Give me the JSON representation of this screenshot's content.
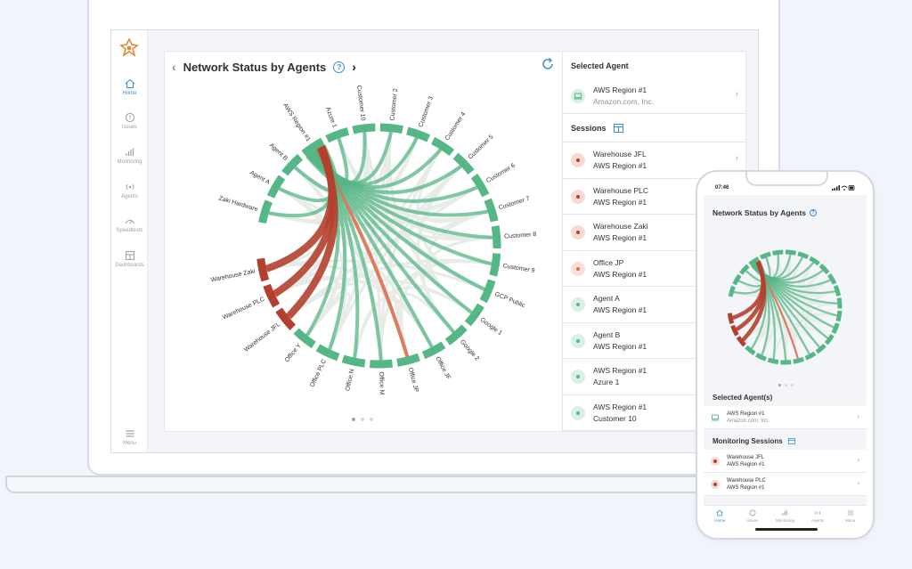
{
  "desktop": {
    "rail": {
      "items": [
        {
          "label": "Home",
          "icon": "home-icon",
          "active": true
        },
        {
          "label": "Issues",
          "icon": "issues-icon"
        },
        {
          "label": "Monitoring",
          "icon": "monitoring-icon"
        },
        {
          "label": "Agents",
          "icon": "agents-icon"
        },
        {
          "label": "Speedtests",
          "icon": "speedtests-icon"
        },
        {
          "label": "Dashboards",
          "icon": "dashboards-icon"
        }
      ],
      "menu_label": "Menu"
    },
    "chart_card": {
      "title": "Network Status by Agents",
      "help_glyph": "?"
    },
    "selected_agent": {
      "heading": "Selected Agent",
      "name": "AWS Region #1",
      "org": "Amazon.com, Inc."
    },
    "sessions": {
      "heading": "Sessions",
      "items": [
        {
          "line1": "Warehouse JFL",
          "line2": "AWS Region #1",
          "status": "red"
        },
        {
          "line1": "Warehouse PLC",
          "line2": "AWS Region #1",
          "status": "red"
        },
        {
          "line1": "Warehouse Zaki",
          "line2": "AWS Region #1",
          "status": "red"
        },
        {
          "line1": "Office JP",
          "line2": "AWS Region #1",
          "status": "orange"
        },
        {
          "line1": "Agent A",
          "line2": "AWS Region #1",
          "status": "green"
        },
        {
          "line1": "Agent B",
          "line2": "AWS Region #1",
          "status": "green"
        },
        {
          "line1": "AWS Region #1",
          "line2": "Azure 1",
          "status": "green"
        },
        {
          "line1": "AWS Region #1",
          "line2": "Customer 10",
          "status": "green"
        }
      ]
    }
  },
  "chart_data": {
    "type": "chord",
    "nodes": [
      "Zaki Hardware",
      "Agent A",
      "Agent B",
      "AWS Region #1",
      "Azure 1",
      "Customer 10",
      "Customer 2",
      "Customer 3",
      "Customer 4",
      "Customer 5",
      "Customer 6",
      "Customer 7",
      "Customer 8",
      "Customer 9",
      "GCP Public",
      "Google 1",
      "Google 2",
      "Office JF",
      "Office JP",
      "Office M",
      "Office N",
      "Office PLC",
      "Office Y",
      "Warehouse JFL",
      "Warehouse PLC",
      "Warehouse Zaki"
    ],
    "status_colors": {
      "ok": "#55b686",
      "critical": "#b3402e",
      "warning": "#d9704f",
      "inactive": "#f3c7c0"
    },
    "critical_links": [
      [
        "Warehouse JFL",
        "AWS Region #1"
      ],
      [
        "Warehouse PLC",
        "AWS Region #1"
      ],
      [
        "Warehouse Zaki",
        "AWS Region #1"
      ]
    ],
    "warning_links": [
      [
        "Office JP",
        "AWS Region #1"
      ]
    ]
  },
  "phone": {
    "time": "07:46",
    "title": "Network Status by Agents",
    "help_glyph": "?",
    "selected": {
      "heading": "Selected Agent(s)",
      "name": "AWS Region #1",
      "org": "Amazon.com, Inc."
    },
    "monitoring": {
      "heading": "Monitoring Sessions",
      "items": [
        {
          "line1": "Warehouse JFL",
          "line2": "AWS Region #1",
          "status": "red"
        },
        {
          "line1": "Warehouse PLC",
          "line2": "AWS Region #1",
          "status": "red"
        }
      ]
    },
    "nav": [
      {
        "label": "Home",
        "active": true
      },
      {
        "label": "Issues"
      },
      {
        "label": "Monitoring"
      },
      {
        "label": "Agents"
      },
      {
        "label": "Menu"
      }
    ]
  }
}
